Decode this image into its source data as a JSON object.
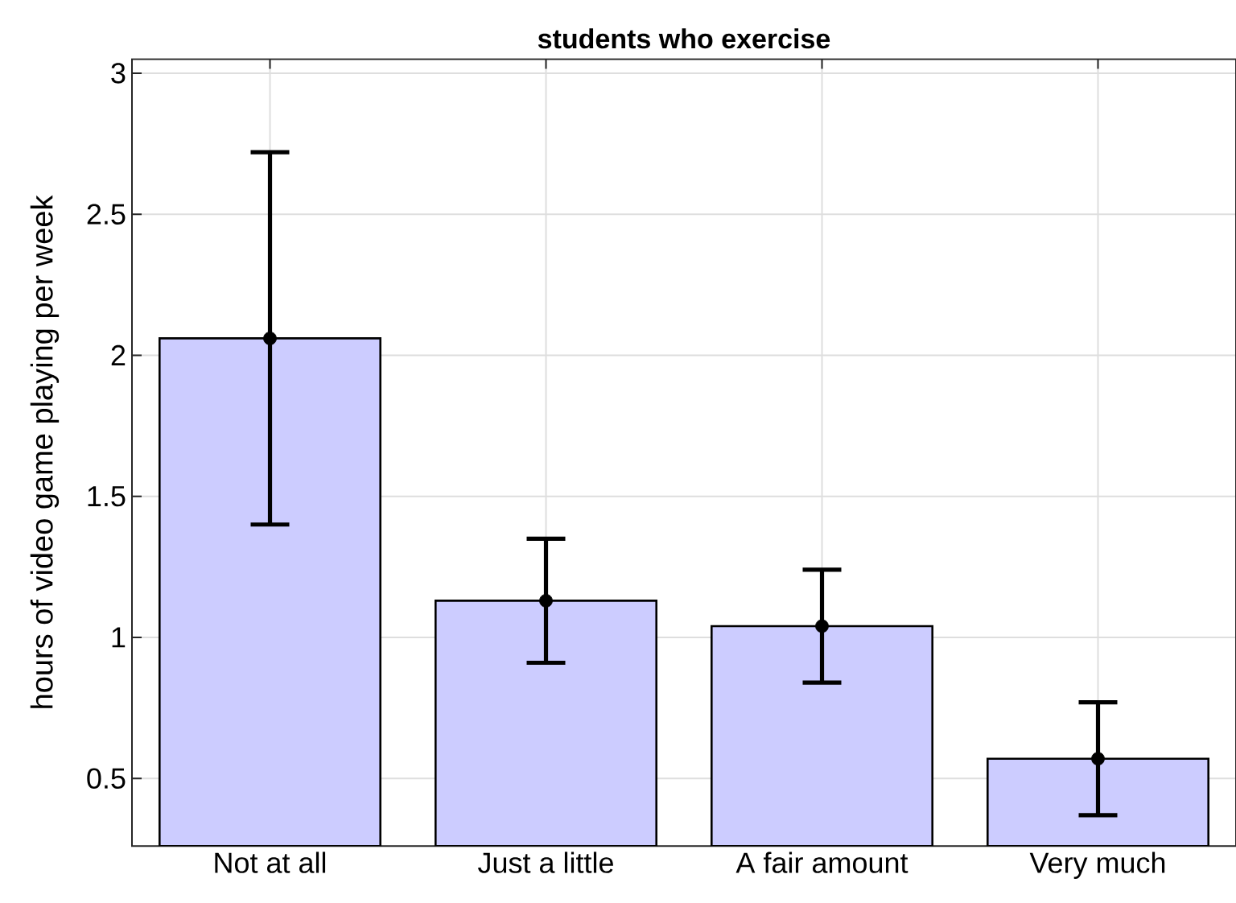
{
  "chart_data": {
    "type": "bar",
    "title": "students who exercise",
    "ylabel": "hours of video game playing per week",
    "categories": [
      "Not at all",
      "Just a little",
      "A fair amount",
      "Very much"
    ],
    "series": [
      {
        "color": "#ccccff",
        "values": [
          2.06,
          1.13,
          1.04,
          0.57
        ]
      },
      {
        "type": "scatter",
        "color": "#000000",
        "marker": "circle",
        "x": [
          "Not at all",
          "Just a little",
          "A fair amount",
          "Very much"
        ],
        "values": [
          2.06,
          1.13,
          1.04,
          0.57
        ],
        "errors": [
          0.66,
          0.22,
          0.2,
          0.2
        ]
      }
    ],
    "ylim": [
      0.26,
      3.05
    ],
    "yticks": [
      0.5,
      1,
      1.5,
      2,
      2.5,
      3
    ],
    "grid": true
  }
}
